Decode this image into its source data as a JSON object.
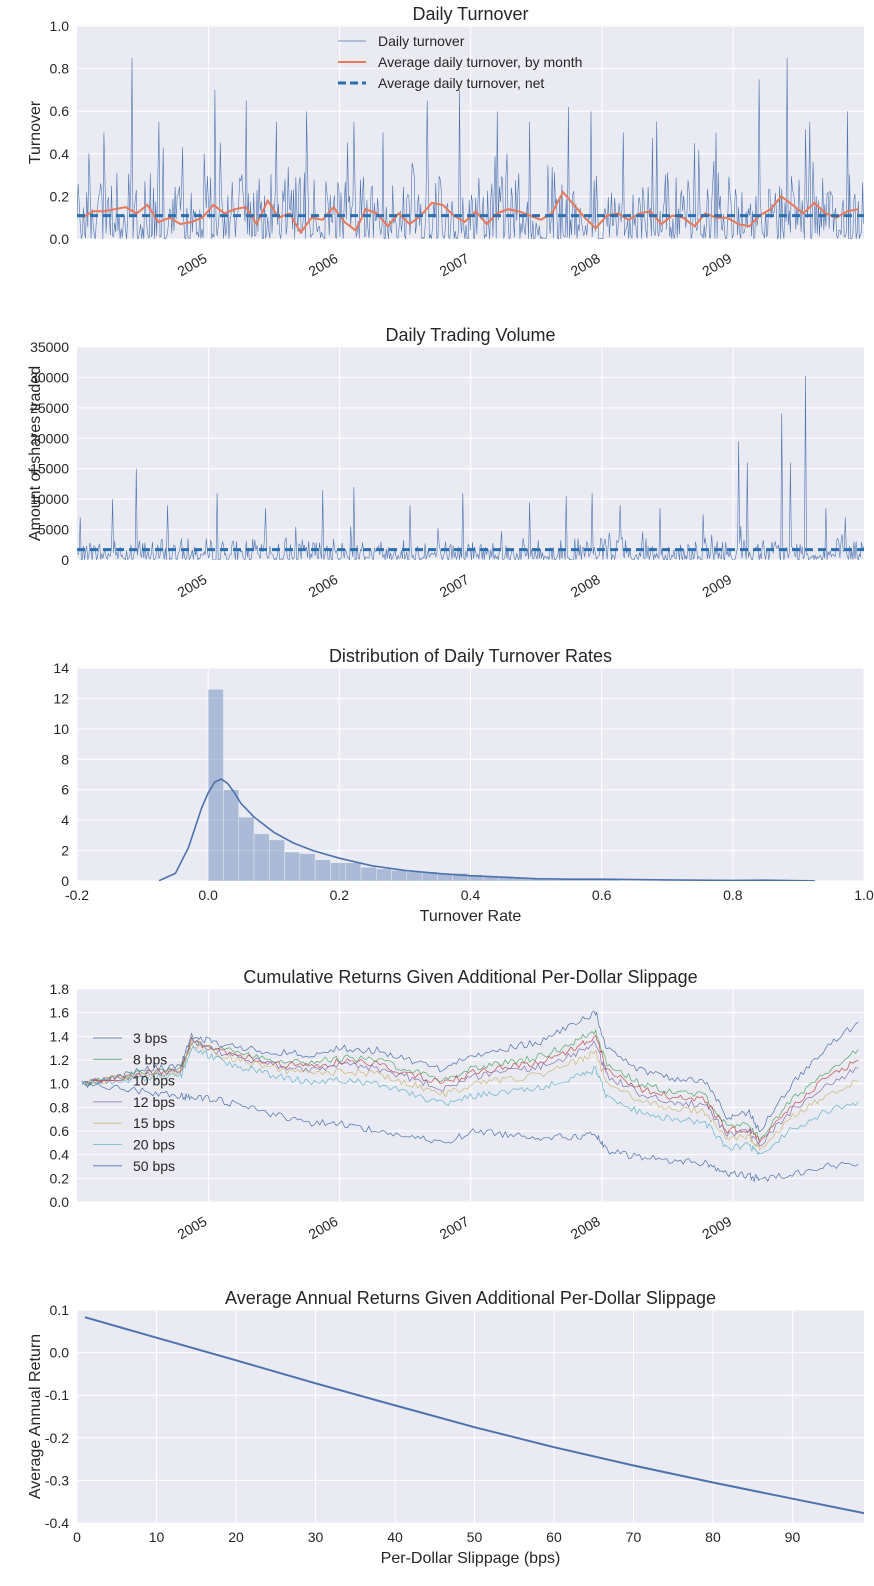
{
  "chart_data": [
    {
      "type": "line",
      "title": "Daily Turnover",
      "xlabel": "",
      "ylabel": "Turnover",
      "xlim": [
        "2004-01-01",
        "2009-12-31"
      ],
      "ylim": [
        0,
        1.0
      ],
      "yticks": [
        0.0,
        0.2,
        0.4,
        0.6,
        0.8,
        1.0
      ],
      "ytick_labels": [
        "0.0",
        "0.2",
        "0.4",
        "0.6",
        "0.8",
        "1.0"
      ],
      "xticks": [
        "2005-01-01",
        "2006-01-01",
        "2007-01-01",
        "2008-01-01",
        "2009-01-01"
      ],
      "xtick_labels": [
        "2005",
        "2006",
        "2007",
        "2008",
        "2009"
      ],
      "grid": true,
      "legend_position": "upper-center",
      "series": [
        {
          "name": "Daily turnover",
          "style": "thin-line",
          "color": "#4c72b0",
          "spikes": [
            [
              "2004-06-01",
              0.85
            ],
            [
              "2004-03-15",
              0.5
            ],
            [
              "2004-08-15",
              0.55
            ],
            [
              "2004-12-20",
              0.4
            ],
            [
              "2005-01-20",
              0.7
            ],
            [
              "2005-04-15",
              0.65
            ],
            [
              "2005-07-10",
              0.55
            ],
            [
              "2005-10-01",
              0.6
            ],
            [
              "2006-02-10",
              0.55
            ],
            [
              "2006-05-01",
              0.5
            ],
            [
              "2006-09-01",
              0.65
            ],
            [
              "2006-12-01",
              0.7
            ],
            [
              "2007-03-15",
              0.6
            ],
            [
              "2007-06-15",
              0.55
            ],
            [
              "2007-10-01",
              0.62
            ],
            [
              "2007-12-01",
              0.6
            ],
            [
              "2008-03-01",
              0.5
            ],
            [
              "2008-06-01",
              0.55
            ],
            [
              "2008-09-15",
              0.45
            ],
            [
              "2008-11-15",
              0.5
            ],
            [
              "2009-03-15",
              0.75
            ],
            [
              "2009-06-01",
              0.85
            ],
            [
              "2009-08-01",
              0.55
            ],
            [
              "2009-11-15",
              0.6
            ]
          ],
          "typical_range": [
            0.0,
            0.35
          ]
        },
        {
          "name": "Average daily turnover, by month",
          "style": "line",
          "color": "#e8785a",
          "x": [
            "2004-01",
            "2004-02",
            "2004-03",
            "2004-04",
            "2004-05",
            "2004-06",
            "2004-07",
            "2004-08",
            "2004-09",
            "2004-10",
            "2004-11",
            "2004-12",
            "2005-01",
            "2005-02",
            "2005-03",
            "2005-04",
            "2005-05",
            "2005-06",
            "2005-07",
            "2005-08",
            "2005-09",
            "2005-10",
            "2005-11",
            "2005-12",
            "2006-01",
            "2006-02",
            "2006-03",
            "2006-04",
            "2006-05",
            "2006-06",
            "2006-07",
            "2006-08",
            "2006-09",
            "2006-10",
            "2006-11",
            "2006-12",
            "2007-01",
            "2007-02",
            "2007-03",
            "2007-04",
            "2007-05",
            "2007-06",
            "2007-07",
            "2007-08",
            "2007-09",
            "2007-10",
            "2007-11",
            "2007-12",
            "2008-01",
            "2008-02",
            "2008-03",
            "2008-04",
            "2008-05",
            "2008-06",
            "2008-07",
            "2008-08",
            "2008-09",
            "2008-10",
            "2008-11",
            "2008-12",
            "2009-01",
            "2009-02",
            "2009-03",
            "2009-04",
            "2009-05",
            "2009-06",
            "2009-07",
            "2009-08",
            "2009-09",
            "2009-10",
            "2009-11",
            "2009-12"
          ],
          "values": [
            0.1,
            0.13,
            0.13,
            0.14,
            0.15,
            0.12,
            0.16,
            0.08,
            0.1,
            0.07,
            0.08,
            0.1,
            0.16,
            0.12,
            0.14,
            0.15,
            0.07,
            0.18,
            0.1,
            0.12,
            0.03,
            0.1,
            0.09,
            0.15,
            0.08,
            0.04,
            0.14,
            0.12,
            0.06,
            0.12,
            0.07,
            0.11,
            0.17,
            0.16,
            0.11,
            0.08,
            0.13,
            0.07,
            0.12,
            0.14,
            0.13,
            0.11,
            0.09,
            0.12,
            0.22,
            0.16,
            0.1,
            0.05,
            0.11,
            0.12,
            0.09,
            0.12,
            0.13,
            0.07,
            0.11,
            0.1,
            0.06,
            0.12,
            0.1,
            0.1,
            0.07,
            0.06,
            0.11,
            0.14,
            0.2,
            0.16,
            0.12,
            0.17,
            0.12,
            0.1,
            0.13,
            0.14
          ]
        },
        {
          "name": "Average daily turnover, net",
          "style": "dashed",
          "color": "#2a6fb0",
          "value": 0.11
        }
      ]
    },
    {
      "type": "line",
      "title": "Daily Trading Volume",
      "xlabel": "",
      "ylabel": "Amount of shares traded",
      "xlim": [
        "2004-01-01",
        "2009-12-31"
      ],
      "ylim": [
        0,
        35000
      ],
      "yticks": [
        0,
        5000,
        10000,
        15000,
        20000,
        25000,
        30000,
        35000
      ],
      "ytick_labels": [
        "0",
        "5000",
        "10000",
        "15000",
        "20000",
        "25000",
        "30000",
        "35000"
      ],
      "xticks": [
        "2005-01-01",
        "2006-01-01",
        "2007-01-01",
        "2008-01-01",
        "2009-01-01"
      ],
      "xtick_labels": [
        "2005",
        "2006",
        "2007",
        "2008",
        "2009"
      ],
      "grid": true,
      "series": [
        {
          "name": "",
          "style": "thin-line",
          "color": "#4c72b0",
          "spikes": [
            [
              "2004-01-10",
              7000
            ],
            [
              "2004-06-15",
              15000
            ],
            [
              "2004-04-10",
              10000
            ],
            [
              "2004-09-10",
              9000
            ],
            [
              "2005-01-25",
              11000
            ],
            [
              "2005-06-10",
              8500
            ],
            [
              "2005-11-15",
              11500
            ],
            [
              "2006-02-10",
              12000
            ],
            [
              "2006-07-15",
              9000
            ],
            [
              "2006-12-10",
              11000
            ],
            [
              "2007-06-15",
              9500
            ],
            [
              "2007-09-25",
              10500
            ],
            [
              "2007-12-05",
              11000
            ],
            [
              "2008-02-20",
              9000
            ],
            [
              "2008-06-10",
              8500
            ],
            [
              "2008-10-10",
              7500
            ],
            [
              "2009-01-15",
              19500
            ],
            [
              "2009-02-10",
              16000
            ],
            [
              "2009-05-15",
              24000
            ],
            [
              "2009-06-10",
              16000
            ],
            [
              "2009-07-20",
              30300
            ],
            [
              "2009-09-15",
              8500
            ],
            [
              "2009-11-10",
              7000
            ]
          ],
          "typical_range": [
            0,
            4000
          ]
        },
        {
          "name": "",
          "style": "dashed",
          "color": "#2a6fb0",
          "value": 1700
        }
      ]
    },
    {
      "type": "bar",
      "title": "Distribution of Daily Turnover Rates",
      "xlabel": "Turnover Rate",
      "ylabel": "",
      "xlim": [
        -0.2,
        1.0
      ],
      "ylim": [
        0,
        14
      ],
      "xticks": [
        -0.2,
        0.0,
        0.2,
        0.4,
        0.6,
        0.8,
        1.0
      ],
      "xtick_labels": [
        "-0.2",
        "0.0",
        "0.2",
        "0.4",
        "0.6",
        "0.8",
        "1.0"
      ],
      "yticks": [
        0,
        2,
        4,
        6,
        8,
        10,
        12,
        14
      ],
      "ytick_labels": [
        "0",
        "2",
        "4",
        "6",
        "8",
        "10",
        "12",
        "14"
      ],
      "grid": true,
      "histogram": {
        "bin_edges": [
          0.0,
          0.0233,
          0.0466,
          0.0699,
          0.0932,
          0.1165,
          0.1398,
          0.1631,
          0.1864,
          0.2097,
          0.233,
          0.2563,
          0.2796,
          0.3029,
          0.3262,
          0.3495,
          0.3728,
          0.3961,
          0.4194,
          0.4427,
          0.466,
          0.4893,
          0.5126,
          0.5359,
          0.5592,
          0.5825,
          0.6058,
          0.6291,
          0.6524,
          0.6757,
          0.699,
          0.7223,
          0.7456,
          0.7689,
          0.7922,
          0.8155,
          0.8388,
          0.8621
        ],
        "density": [
          12.6,
          6.0,
          4.2,
          3.1,
          2.7,
          1.9,
          1.8,
          1.4,
          1.2,
          1.2,
          0.9,
          0.8,
          0.7,
          0.6,
          0.6,
          0.5,
          0.5,
          0.4,
          0.3,
          0.3,
          0.2,
          0.15,
          0.1,
          0.1,
          0.1,
          0.15,
          0.1,
          0.05,
          0.05,
          0.03,
          0.03,
          0.03,
          0.03,
          0.03,
          0.03,
          0.1,
          0.02
        ],
        "color": "#4c72b0",
        "alpha": 0.4
      },
      "kde": {
        "color": "#4c72b0",
        "x": [
          -0.075,
          -0.05,
          -0.03,
          -0.01,
          0.0,
          0.01,
          0.02,
          0.03,
          0.04,
          0.05,
          0.07,
          0.1,
          0.13,
          0.16,
          0.2,
          0.25,
          0.3,
          0.35,
          0.4,
          0.45,
          0.5,
          0.55,
          0.6,
          0.65,
          0.7,
          0.8,
          0.85,
          0.9,
          0.925
        ],
        "y": [
          0.02,
          0.5,
          2.2,
          4.8,
          5.8,
          6.5,
          6.7,
          6.4,
          5.8,
          5.1,
          4.2,
          3.2,
          2.5,
          2.0,
          1.5,
          1.0,
          0.7,
          0.5,
          0.35,
          0.25,
          0.15,
          0.12,
          0.12,
          0.1,
          0.07,
          0.04,
          0.05,
          0.02,
          0.01
        ]
      }
    },
    {
      "type": "line",
      "title": "Cumulative Returns Given Additional Per-Dollar Slippage",
      "xlabel": "",
      "ylabel": "",
      "xlim": [
        "2004-01-01",
        "2009-12-31"
      ],
      "ylim": [
        0.0,
        1.8
      ],
      "yticks": [
        0.0,
        0.2,
        0.4,
        0.6,
        0.8,
        1.0,
        1.2,
        1.4,
        1.6,
        1.8
      ],
      "ytick_labels": [
        "0.0",
        "0.2",
        "0.4",
        "0.6",
        "0.8",
        "1.0",
        "1.2",
        "1.4",
        "1.6",
        "1.8"
      ],
      "xticks": [
        "2005-01-01",
        "2006-01-01",
        "2007-01-01",
        "2008-01-01",
        "2009-01-01"
      ],
      "xtick_labels": [
        "2005",
        "2006",
        "2007",
        "2008",
        "2009"
      ],
      "grid": true,
      "legend_position": "left",
      "x": [
        "2004-01",
        "2004-04",
        "2004-07",
        "2004-10",
        "2004-11",
        "2005-01",
        "2005-04",
        "2005-07",
        "2005-10",
        "2006-01",
        "2006-04",
        "2006-07",
        "2006-10",
        "2007-01",
        "2007-04",
        "2007-07",
        "2007-10",
        "2007-12",
        "2008-01",
        "2008-04",
        "2008-07",
        "2008-10",
        "2008-12",
        "2009-02",
        "2009-03",
        "2009-06",
        "2009-09",
        "2009-12"
      ],
      "series": [
        {
          "name": "3 bps",
          "color": "#4c72b0",
          "values": [
            1.0,
            1.06,
            1.12,
            1.15,
            1.4,
            1.35,
            1.3,
            1.26,
            1.25,
            1.3,
            1.28,
            1.2,
            1.12,
            1.25,
            1.3,
            1.36,
            1.5,
            1.6,
            1.3,
            1.12,
            1.05,
            1.02,
            0.72,
            0.75,
            0.6,
            1.0,
            1.3,
            1.52
          ]
        },
        {
          "name": "8 bps",
          "color": "#55a868",
          "values": [
            1.0,
            1.05,
            1.1,
            1.12,
            1.37,
            1.31,
            1.25,
            1.2,
            1.18,
            1.22,
            1.2,
            1.12,
            1.03,
            1.14,
            1.18,
            1.23,
            1.35,
            1.45,
            1.17,
            1.0,
            0.93,
            0.9,
            0.63,
            0.65,
            0.53,
            0.87,
            1.1,
            1.29
          ]
        },
        {
          "name": "10 bps",
          "color": "#c44e52",
          "values": [
            1.0,
            1.05,
            1.09,
            1.11,
            1.36,
            1.3,
            1.23,
            1.17,
            1.15,
            1.19,
            1.17,
            1.08,
            1.0,
            1.1,
            1.14,
            1.18,
            1.3,
            1.4,
            1.12,
            0.96,
            0.89,
            0.86,
            0.6,
            0.62,
            0.51,
            0.82,
            1.04,
            1.2
          ]
        },
        {
          "name": "12 bps",
          "color": "#8172b2",
          "values": [
            1.0,
            1.04,
            1.08,
            1.1,
            1.35,
            1.28,
            1.21,
            1.15,
            1.12,
            1.16,
            1.13,
            1.05,
            0.96,
            1.06,
            1.1,
            1.14,
            1.25,
            1.34,
            1.07,
            0.92,
            0.85,
            0.82,
            0.57,
            0.59,
            0.48,
            0.78,
            0.98,
            1.13
          ]
        },
        {
          "name": "15 bps",
          "color": "#ccb974",
          "values": [
            1.0,
            1.04,
            1.07,
            1.09,
            1.33,
            1.26,
            1.18,
            1.12,
            1.08,
            1.11,
            1.08,
            1.0,
            0.91,
            1.0,
            1.04,
            1.07,
            1.18,
            1.26,
            1.0,
            0.86,
            0.79,
            0.76,
            0.53,
            0.55,
            0.45,
            0.72,
            0.9,
            1.02
          ]
        },
        {
          "name": "20 bps",
          "color": "#64b5cd",
          "values": [
            1.0,
            1.02,
            1.05,
            1.06,
            1.3,
            1.22,
            1.13,
            1.06,
            1.01,
            1.03,
            1.0,
            0.91,
            0.83,
            0.9,
            0.93,
            0.96,
            1.05,
            1.12,
            0.89,
            0.76,
            0.7,
            0.67,
            0.46,
            0.48,
            0.39,
            0.62,
            0.76,
            0.85
          ]
        },
        {
          "name": "50 bps",
          "color": "#4c72b0",
          "values": [
            1.0,
            0.97,
            0.93,
            0.9,
            0.88,
            0.87,
            0.8,
            0.73,
            0.67,
            0.66,
            0.6,
            0.55,
            0.5,
            0.6,
            0.57,
            0.55,
            0.55,
            0.57,
            0.43,
            0.38,
            0.35,
            0.33,
            0.24,
            0.22,
            0.19,
            0.24,
            0.3,
            0.32
          ]
        }
      ]
    },
    {
      "type": "line",
      "title": "Average Annual Returns Given Additional Per-Dollar Slippage",
      "xlabel": "Per-Dollar Slippage (bps)",
      "ylabel": "Average Annual Return",
      "xlim": [
        0,
        99
      ],
      "ylim": [
        -0.4,
        0.1
      ],
      "xticks": [
        0,
        10,
        20,
        30,
        40,
        50,
        60,
        70,
        80,
        90
      ],
      "xtick_labels": [
        "0",
        "10",
        "20",
        "30",
        "40",
        "50",
        "60",
        "70",
        "80",
        "90"
      ],
      "yticks": [
        -0.4,
        -0.3,
        -0.2,
        -0.1,
        0.0,
        0.1
      ],
      "ytick_labels": [
        "-0.4",
        "-0.3",
        "-0.2",
        "-0.1",
        "0.0",
        "0.1"
      ],
      "grid": true,
      "series": [
        {
          "name": "",
          "color": "#4c72b0",
          "x": [
            1,
            10,
            20,
            30,
            40,
            50,
            60,
            70,
            80,
            90,
            99
          ],
          "values": [
            0.083,
            0.035,
            -0.018,
            -0.072,
            -0.124,
            -0.175,
            -0.222,
            -0.265,
            -0.305,
            -0.343,
            -0.377
          ]
        }
      ]
    }
  ]
}
